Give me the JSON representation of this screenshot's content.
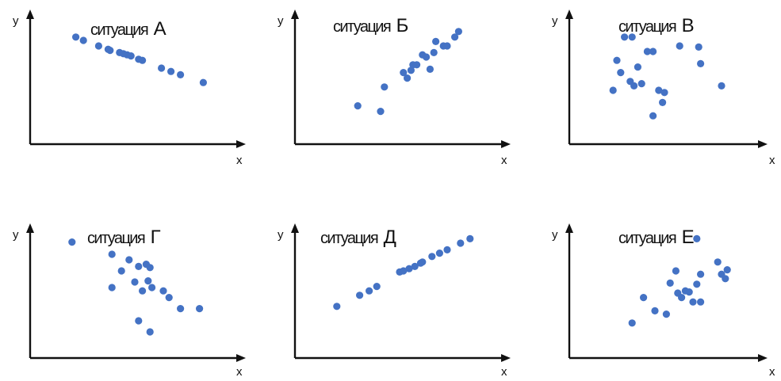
{
  "chart_data": [
    {
      "type": "scatter",
      "title": "ситуация А",
      "title_word": "ситуация",
      "title_letter": "А",
      "xlabel": "x",
      "ylabel": "y",
      "xlim": [
        0,
        100
      ],
      "ylim": [
        0,
        100
      ],
      "color": "#4472c4",
      "points": [
        [
          19,
          88
        ],
        [
          23,
          85
        ],
        [
          31,
          80
        ],
        [
          36,
          77
        ],
        [
          37,
          76
        ],
        [
          42,
          74
        ],
        [
          44,
          73
        ],
        [
          46,
          72
        ],
        [
          48,
          71
        ],
        [
          52,
          68
        ],
        [
          54,
          67
        ],
        [
          64,
          60
        ],
        [
          69,
          57
        ],
        [
          74,
          54
        ],
        [
          86,
          47
        ]
      ]
    },
    {
      "type": "scatter",
      "title": "ситуация Б",
      "title_word": "ситуация",
      "title_letter": "Б",
      "xlabel": "x",
      "ylabel": "y",
      "xlim": [
        0,
        100
      ],
      "ylim": [
        0,
        100
      ],
      "color": "#4472c4",
      "points": [
        [
          28,
          26
        ],
        [
          40,
          21
        ],
        [
          42,
          43
        ],
        [
          52,
          56
        ],
        [
          54,
          51
        ],
        [
          56,
          58
        ],
        [
          57,
          63
        ],
        [
          59,
          63
        ],
        [
          62,
          72
        ],
        [
          64,
          70
        ],
        [
          66,
          59
        ],
        [
          68,
          74
        ],
        [
          69,
          84
        ],
        [
          73,
          80
        ],
        [
          75,
          80
        ],
        [
          79,
          88
        ],
        [
          81,
          93
        ]
      ]
    },
    {
      "type": "scatter",
      "title": "ситуация В",
      "title_word": "ситуация",
      "title_letter": "В",
      "xlabel": "x",
      "ylabel": "y",
      "xlim": [
        0,
        100
      ],
      "ylim": [
        0,
        100
      ],
      "color": "#4472c4",
      "points": [
        [
          24,
          88
        ],
        [
          28,
          88
        ],
        [
          20,
          67
        ],
        [
          22,
          56
        ],
        [
          18,
          40
        ],
        [
          27,
          48
        ],
        [
          29,
          44
        ],
        [
          31,
          61
        ],
        [
          33,
          46
        ],
        [
          36,
          75
        ],
        [
          39,
          75
        ],
        [
          42,
          40
        ],
        [
          44,
          29
        ],
        [
          45,
          38
        ],
        [
          39,
          17
        ],
        [
          53,
          80
        ],
        [
          63,
          79
        ],
        [
          64,
          64
        ],
        [
          75,
          44
        ]
      ]
    },
    {
      "type": "scatter",
      "title": "ситуация Г",
      "title_word": "ситуация",
      "title_letter": "Г",
      "xlabel": "x",
      "ylabel": "y",
      "xlim": [
        0,
        100
      ],
      "ylim": [
        0,
        100
      ],
      "color": "#4472c4",
      "points": [
        [
          17,
          96
        ],
        [
          38,
          85
        ],
        [
          43,
          70
        ],
        [
          47,
          80
        ],
        [
          38,
          55
        ],
        [
          50,
          60
        ],
        [
          52,
          74
        ],
        [
          56,
          76
        ],
        [
          58,
          73
        ],
        [
          57,
          61
        ],
        [
          59,
          55
        ],
        [
          54,
          52
        ],
        [
          65,
          52
        ],
        [
          68,
          46
        ],
        [
          74,
          36
        ],
        [
          84,
          36
        ],
        [
          52,
          25
        ],
        [
          58,
          15
        ]
      ]
    },
    {
      "type": "scatter",
      "title": "ситуация Д",
      "title_word": "ситуация",
      "title_letter": "Д",
      "xlabel": "x",
      "ylabel": "y",
      "xlim": [
        0,
        100
      ],
      "ylim": [
        0,
        100
      ],
      "color": "#4472c4",
      "points": [
        [
          17,
          38
        ],
        [
          29,
          48
        ],
        [
          34,
          52
        ],
        [
          38,
          56
        ],
        [
          50,
          69
        ],
        [
          52,
          70
        ],
        [
          55,
          72
        ],
        [
          58,
          74
        ],
        [
          61,
          77
        ],
        [
          62,
          78
        ],
        [
          67,
          83
        ],
        [
          71,
          86
        ],
        [
          75,
          89
        ],
        [
          82,
          95
        ],
        [
          87,
          99
        ]
      ]
    },
    {
      "type": "scatter",
      "title": "ситуация Е",
      "title_word": "ситуация",
      "title_letter": "Е",
      "xlabel": "x",
      "ylabel": "y",
      "xlim": [
        0,
        100
      ],
      "ylim": [
        0,
        100
      ],
      "color": "#4472c4",
      "points": [
        [
          28,
          23
        ],
        [
          34,
          46
        ],
        [
          40,
          34
        ],
        [
          46,
          31
        ],
        [
          48,
          59
        ],
        [
          52,
          50
        ],
        [
          51,
          70
        ],
        [
          54,
          46
        ],
        [
          56,
          52
        ],
        [
          58,
          51
        ],
        [
          60,
          42
        ],
        [
          62,
          58
        ],
        [
          64,
          42
        ],
        [
          62,
          99
        ],
        [
          64,
          67
        ],
        [
          73,
          78
        ],
        [
          75,
          67
        ],
        [
          78,
          71
        ],
        [
          77,
          63
        ]
      ]
    }
  ]
}
